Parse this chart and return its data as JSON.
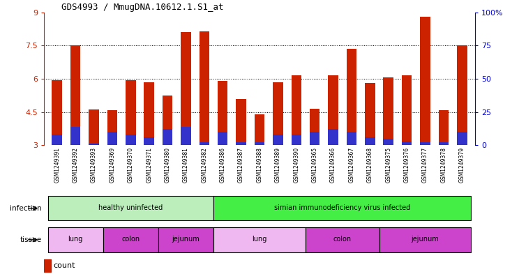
{
  "title": "GDS4993 / MmugDNA.10612.1.S1_at",
  "samples": [
    "GSM1249391",
    "GSM1249392",
    "GSM1249393",
    "GSM1249369",
    "GSM1249370",
    "GSM1249371",
    "GSM1249380",
    "GSM1249381",
    "GSM1249382",
    "GSM1249386",
    "GSM1249387",
    "GSM1249388",
    "GSM1249389",
    "GSM1249390",
    "GSM1249365",
    "GSM1249366",
    "GSM1249367",
    "GSM1249368",
    "GSM1249375",
    "GSM1249376",
    "GSM1249377",
    "GSM1249378",
    "GSM1249379"
  ],
  "counts": [
    5.95,
    7.5,
    4.62,
    4.57,
    5.95,
    5.85,
    5.25,
    8.1,
    8.15,
    5.9,
    5.1,
    4.4,
    5.85,
    6.15,
    4.65,
    6.15,
    7.35,
    5.8,
    6.05,
    6.15,
    8.8,
    4.57,
    7.5
  ],
  "percentile_ranks_pct": [
    8,
    14,
    1,
    10,
    8,
    6,
    12,
    14,
    2,
    10,
    2,
    2,
    8,
    8,
    10,
    12,
    10,
    6,
    5,
    3,
    2,
    2,
    10
  ],
  "bar_color": "#cc2200",
  "blue_color": "#3333cc",
  "ymin": 3,
  "ymax": 9,
  "yticks": [
    3,
    4.5,
    6,
    7.5,
    9
  ],
  "ytick_labels": [
    "3",
    "4.5",
    "6",
    "7.5",
    "9"
  ],
  "right_yticks": [
    0,
    25,
    50,
    75,
    100
  ],
  "right_ytick_labels": [
    "0",
    "25",
    "50",
    "75",
    "100%"
  ],
  "infection_groups": [
    {
      "label": "healthy uninfected",
      "start": 0,
      "end": 9,
      "color": "#bbeebb"
    },
    {
      "label": "simian immunodeficiency virus infected",
      "start": 9,
      "end": 23,
      "color": "#44ee44"
    }
  ],
  "tissue_groups": [
    {
      "label": "lung",
      "start": 0,
      "end": 3,
      "color": "#f0b8f0"
    },
    {
      "label": "colon",
      "start": 3,
      "end": 6,
      "color": "#cc44cc"
    },
    {
      "label": "jejunum",
      "start": 6,
      "end": 9,
      "color": "#cc44cc"
    },
    {
      "label": "lung",
      "start": 9,
      "end": 14,
      "color": "#f0b8f0"
    },
    {
      "label": "colon",
      "start": 14,
      "end": 18,
      "color": "#cc44cc"
    },
    {
      "label": "jejunum",
      "start": 18,
      "end": 23,
      "color": "#cc44cc"
    }
  ],
  "label_color_left": "#cc2200",
  "label_color_right": "#0000cc",
  "xtick_bg_color": "#dddddd"
}
